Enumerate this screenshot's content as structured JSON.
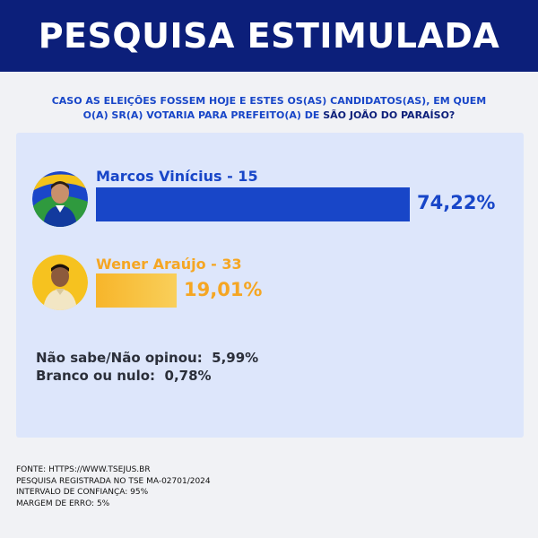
{
  "header": {
    "title": "PESQUISA ESTIMULADA"
  },
  "question": {
    "line1": "CASO AS ELEIÇÕES FOSSEM HOJE E ESTES OS(AS) CANDIDATOS(AS), EM QUEM",
    "line2_prefix": "O(A) SR(A) VOTARIA PARA PREFEITO(A) DE ",
    "line2_highlight": "SÃO JOÃO DO PARAÍSO?"
  },
  "colors": {
    "header_bg": "#0c1f7a",
    "candidate1": "#1846c8",
    "candidate2": "#f5a623",
    "panel_bg": "#dde6fb"
  },
  "chart_data": {
    "type": "bar",
    "orientation": "horizontal",
    "categories": [
      "Marcos Vinícius - 15",
      "Wener Araújo - 33"
    ],
    "values": [
      74.22,
      19.01
    ],
    "labels": [
      "74,22%",
      "19,01%"
    ],
    "xlim": [
      0,
      100
    ],
    "grid": false,
    "others": [
      {
        "label": "Não sabe/Não opinou:",
        "value_label": "5,99%",
        "value": 5.99
      },
      {
        "label": "Branco ou nulo:",
        "value_label": "0,78%",
        "value": 0.78
      }
    ]
  },
  "footer": {
    "source": "FONTE: HTTPS://WWW.TSEJUS.BR",
    "registration": "PESQUISA REGISTRADA NO TSE MA-02701/2024",
    "confidence": "INTERVALO DE CONFIANÇA: 95%",
    "margin": "MARGEM DE ERRO: 5%"
  }
}
